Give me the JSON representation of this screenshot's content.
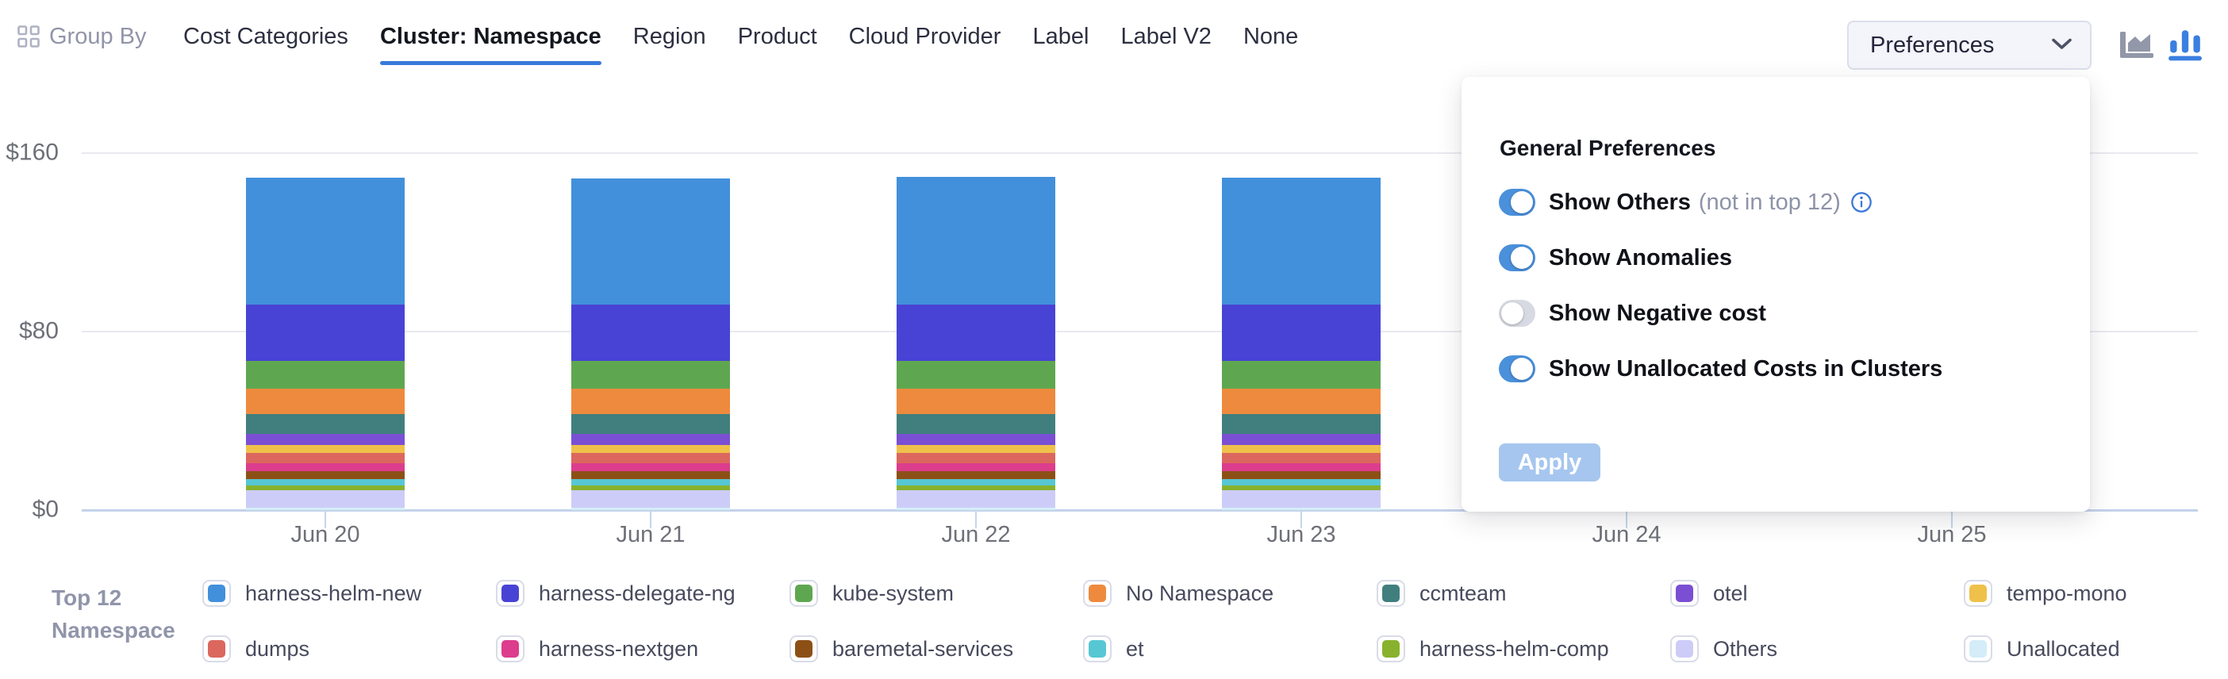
{
  "header": {
    "group_by_label": "Group By",
    "tabs": [
      {
        "label": "Cost Categories",
        "active": false
      },
      {
        "label": "Cluster: Namespace",
        "active": true
      },
      {
        "label": "Region",
        "active": false
      },
      {
        "label": "Product",
        "active": false
      },
      {
        "label": "Cloud Provider",
        "active": false
      },
      {
        "label": "Label",
        "active": false
      },
      {
        "label": "Label V2",
        "active": false
      },
      {
        "label": "None",
        "active": false
      }
    ],
    "preferences_label": "Preferences",
    "chart_type_icons": [
      {
        "name": "area-chart-icon",
        "selected": false
      },
      {
        "name": "bar-chart-icon",
        "selected": true
      }
    ]
  },
  "preferences_panel": {
    "title": "General Preferences",
    "toggles": [
      {
        "label": "Show Others",
        "suffix": "(not in top 12)",
        "info": true,
        "on": true
      },
      {
        "label": "Show Anomalies",
        "suffix": "",
        "info": false,
        "on": true
      },
      {
        "label": "Show Negative cost",
        "suffix": "",
        "info": false,
        "on": false
      },
      {
        "label": "Show Unallocated Costs in Clusters",
        "suffix": "",
        "info": false,
        "on": true
      }
    ],
    "apply_label": "Apply"
  },
  "legend": {
    "title_line1": "Top 12",
    "title_line2": "Namespace"
  },
  "colors": {
    "active_tab_underline": "#3a79dc",
    "toggle_on": "#4a90db",
    "apply_disabled": "#a6c6ef",
    "selected_icon_blue": "#3b7fe0",
    "muted_icon_gray": "#9297a9"
  },
  "chart_data": {
    "type": "bar",
    "stacked": true,
    "title": "",
    "xlabel": "",
    "ylabel": "",
    "x": [
      "Jun 20",
      "Jun 21",
      "Jun 22",
      "Jun 23",
      "Jun 24",
      "Jun 25"
    ],
    "ylim": [
      0,
      160
    ],
    "y_ticks": [
      {
        "value": 0,
        "label": "$0"
      },
      {
        "value": 80,
        "label": "$80"
      },
      {
        "value": 160,
        "label": "$160"
      }
    ],
    "grid": true,
    "legend_position": "bottom",
    "units": "USD per day",
    "series": [
      {
        "name": "harness-helm-new",
        "color": "#4290db",
        "values": [
          57,
          56.5,
          57.5,
          57,
          null,
          null
        ]
      },
      {
        "name": "harness-delegate-ng",
        "color": "#4843d5",
        "values": [
          25,
          25,
          25,
          25,
          null,
          null
        ]
      },
      {
        "name": "kube-system",
        "color": "#5ea750",
        "values": [
          12.5,
          12.5,
          12.5,
          12.5,
          null,
          null
        ]
      },
      {
        "name": "No Namespace",
        "color": "#ee8a3e",
        "values": [
          11.5,
          11.5,
          11.5,
          11.5,
          null,
          null
        ]
      },
      {
        "name": "ccmteam",
        "color": "#417f7e",
        "values": [
          9,
          9,
          9,
          9,
          null,
          null
        ]
      },
      {
        "name": "otel",
        "color": "#7a4fd3",
        "values": [
          5,
          5,
          5,
          5,
          null,
          null
        ]
      },
      {
        "name": "tempo-mono",
        "color": "#efc14a",
        "values": [
          3.5,
          3.5,
          3.5,
          3.5,
          null,
          null
        ]
      },
      {
        "name": "dumps",
        "color": "#dc675e",
        "values": [
          4.5,
          4.5,
          4.5,
          4.5,
          null,
          null
        ]
      },
      {
        "name": "harness-nextgen",
        "color": "#dc3d8c",
        "values": [
          3.5,
          3.5,
          3.5,
          3.5,
          null,
          null
        ]
      },
      {
        "name": "baremetal-services",
        "color": "#8c5017",
        "values": [
          3.5,
          3.5,
          3.5,
          3.5,
          null,
          null
        ]
      },
      {
        "name": "et",
        "color": "#57c7d4",
        "values": [
          3,
          3,
          3,
          3,
          null,
          null
        ]
      },
      {
        "name": "harness-helm-comp",
        "color": "#88b22d",
        "values": [
          2,
          2,
          2,
          2,
          null,
          null
        ]
      },
      {
        "name": "Others",
        "color": "#cdccf8",
        "values": [
          8,
          8,
          8,
          8,
          null,
          null
        ]
      },
      {
        "name": "Unallocated",
        "color": "#d4edf8",
        "values": [
          1,
          1,
          1,
          1,
          null,
          null
        ]
      }
    ]
  }
}
